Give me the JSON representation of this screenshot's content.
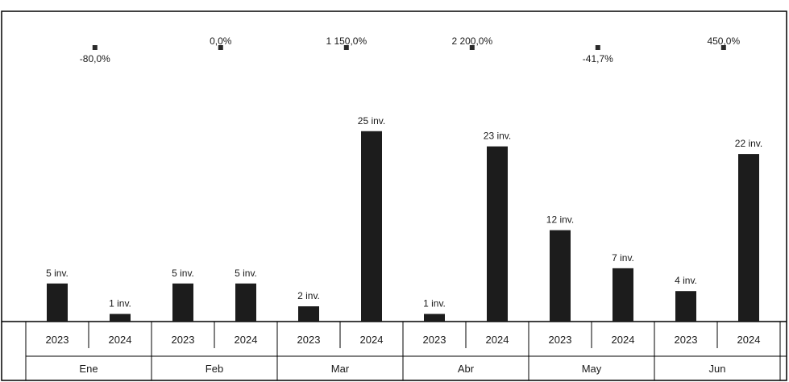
{
  "chart_data": {
    "type": "bar",
    "title": "",
    "xlabel": "",
    "ylabel": "",
    "months": [
      "Ene",
      "Feb",
      "Mar",
      "Abr",
      "May",
      "Jun"
    ],
    "years": [
      "2023",
      "2024"
    ],
    "values_2023": [
      5,
      5,
      2,
      1,
      12,
      4
    ],
    "values_2024": [
      1,
      5,
      25,
      23,
      7,
      22
    ],
    "labels_2023": [
      "5 inv.",
      "5 inv.",
      "2 inv.",
      "1 inv.",
      "12 inv.",
      "4 inv."
    ],
    "labels_2024": [
      "1 inv.",
      "5 inv.",
      "25 inv.",
      "23 inv.",
      "7 inv.",
      "22 inv."
    ],
    "pct_change": [
      "-80,0%",
      "0,0%",
      "1 150,0%",
      "2 200,0%",
      "-41,7%",
      "450,0%"
    ],
    "pct_values": [
      -80.0,
      0.0,
      1150.0,
      2200.0,
      -41.7,
      450.0
    ],
    "ylim": [
      0,
      28
    ],
    "colors": {
      "bar": "#1c1c1c",
      "marker": "#2a2a2a",
      "border": "#000000"
    },
    "grid": false,
    "legend": "none"
  }
}
